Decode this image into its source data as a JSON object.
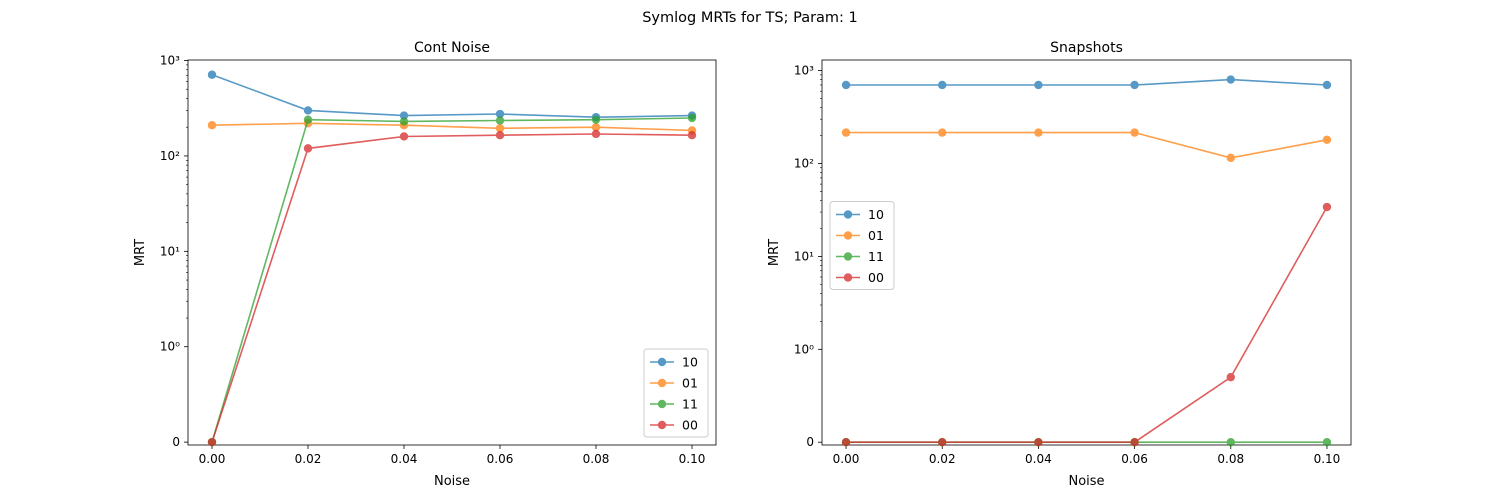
{
  "figure": {
    "suptitle": "Symlog MRTs for TS; Param: 1"
  },
  "chart_data": [
    {
      "type": "line",
      "title": "Cont Noise",
      "xlabel": "Noise",
      "ylabel": "MRT",
      "yscale": "symlog",
      "linthresh": 1,
      "xlim": [
        -0.005,
        0.105
      ],
      "x_ticks": [
        0.0,
        0.02,
        0.04,
        0.06,
        0.08,
        0.1
      ],
      "x_tick_labels": [
        "0.00",
        "0.02",
        "0.04",
        "0.06",
        "0.08",
        "0.10"
      ],
      "y_ticks": [
        0,
        1,
        10,
        100,
        1000
      ],
      "x": [
        0.0,
        0.02,
        0.04,
        0.06,
        0.08,
        0.1
      ],
      "series": [
        {
          "name": "10",
          "color": "#1f77b4",
          "values": [
            710,
            300,
            265,
            275,
            255,
            265
          ]
        },
        {
          "name": "01",
          "color": "#ff7f0e",
          "values": [
            210,
            220,
            210,
            195,
            200,
            185
          ]
        },
        {
          "name": "11",
          "color": "#2ca02c",
          "values": [
            0,
            240,
            230,
            235,
            240,
            250
          ]
        },
        {
          "name": "00",
          "color": "#d62728",
          "values": [
            0,
            120,
            160,
            165,
            170,
            165
          ]
        }
      ],
      "legend_placement": "lower right",
      "grid": false
    },
    {
      "type": "line",
      "title": "Snapshots",
      "xlabel": "Noise",
      "ylabel": "MRT",
      "yscale": "symlog",
      "linthresh": 1,
      "xlim": [
        -0.005,
        0.105
      ],
      "x_ticks": [
        0.0,
        0.02,
        0.04,
        0.06,
        0.08,
        0.1
      ],
      "x_tick_labels": [
        "0.00",
        "0.02",
        "0.04",
        "0.06",
        "0.08",
        "0.10"
      ],
      "y_ticks": [
        0,
        1,
        10,
        100,
        1000
      ],
      "x": [
        0.0,
        0.02,
        0.04,
        0.06,
        0.08,
        0.1
      ],
      "series": [
        {
          "name": "10",
          "color": "#1f77b4",
          "values": [
            700,
            700,
            700,
            700,
            800,
            700
          ]
        },
        {
          "name": "01",
          "color": "#ff7f0e",
          "values": [
            215,
            215,
            215,
            215,
            115,
            180
          ]
        },
        {
          "name": "11",
          "color": "#2ca02c",
          "values": [
            0,
            0,
            0,
            0,
            0,
            0
          ]
        },
        {
          "name": "00",
          "color": "#d62728",
          "values": [
            0,
            0,
            0,
            0,
            0.7,
            34
          ]
        }
      ],
      "legend_placement": "center left",
      "grid": false
    }
  ]
}
